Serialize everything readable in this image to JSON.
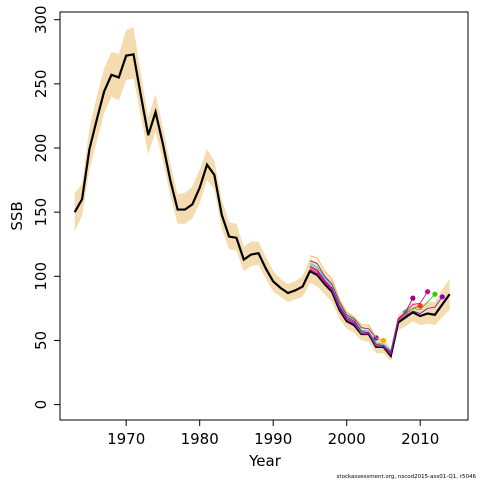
{
  "chart_data": {
    "type": "line",
    "xlabel": "Year",
    "ylabel": "SSB",
    "footnote": "stockassessment.org, nscod2015-ass01-Q1, r5046",
    "xlim": [
      1961,
      2016.5
    ],
    "ylim": [
      -12,
      306
    ],
    "xticks": [
      1970,
      1980,
      1990,
      2000,
      2010
    ],
    "yticks": [
      0,
      50,
      100,
      150,
      200,
      250,
      300
    ],
    "x": [
      1963,
      1964,
      1965,
      1966,
      1967,
      1968,
      1969,
      1970,
      1971,
      1972,
      1973,
      1974,
      1975,
      1976,
      1977,
      1978,
      1979,
      1980,
      1981,
      1982,
      1983,
      1984,
      1985,
      1986,
      1987,
      1988,
      1989,
      1990,
      1991,
      1992,
      1993,
      1994,
      1995,
      1996,
      1997,
      1998,
      1999,
      2000,
      2001,
      2002,
      2003,
      2004,
      2005,
      2006,
      2007,
      2008,
      2009,
      2010,
      2011,
      2012,
      2013,
      2014
    ],
    "values": [
      150,
      160,
      199,
      222,
      244,
      257,
      255,
      272,
      273,
      241,
      210,
      228,
      203,
      175,
      152,
      152,
      156,
      169,
      187,
      179,
      148,
      131,
      130,
      113,
      117,
      118,
      106,
      96,
      91,
      87,
      89,
      92,
      104,
      101,
      94,
      88,
      74,
      65,
      62,
      55,
      55,
      45,
      45,
      38,
      64,
      68,
      72,
      69,
      71,
      70,
      78,
      86
    ],
    "color": "#000000",
    "band_upper": [
      165,
      172,
      215,
      240,
      262,
      275,
      273,
      292,
      294,
      258,
      224,
      242,
      216,
      188,
      164,
      165,
      170,
      183,
      199,
      190,
      160,
      142,
      141,
      123,
      127,
      127,
      115,
      104,
      98,
      94,
      96,
      100,
      114,
      111,
      103,
      97,
      82,
      72,
      69,
      61,
      61,
      51,
      51,
      44,
      70,
      75,
      80,
      78,
      80,
      80,
      90,
      98
    ],
    "band_lower": [
      135,
      147,
      183,
      205,
      227,
      240,
      237,
      253,
      254,
      225,
      195,
      213,
      190,
      163,
      141,
      141,
      145,
      157,
      175,
      168,
      137,
      121,
      120,
      104,
      108,
      109,
      98,
      88,
      84,
      80,
      82,
      84,
      95,
      92,
      86,
      80,
      67,
      59,
      56,
      50,
      49,
      40,
      40,
      34,
      58,
      61,
      65,
      62,
      63,
      62,
      68,
      74
    ],
    "band_color": "#f5dcb0",
    "series": [
      {
        "color": "#6a1b9a",
        "x": [
          1995,
          1996,
          1997,
          1998,
          1999,
          2000,
          2001,
          2002,
          2003,
          2004
        ],
        "values": [
          112,
          110,
          100,
          94,
          80,
          70,
          67,
          60,
          59,
          52
        ]
      },
      {
        "color": "#ffa500",
        "x": [
          1995,
          1996,
          1997,
          1998,
          1999,
          2000,
          2001,
          2002,
          2003,
          2004,
          2005
        ],
        "values": [
          116,
          114,
          104,
          98,
          82,
          72,
          68,
          62,
          62,
          52,
          50
        ]
      },
      {
        "color": "#00bcd4",
        "x": [
          1995,
          1996,
          1997,
          1998,
          1999,
          2000,
          2001,
          2002,
          2003,
          2004,
          2005,
          2006,
          2007,
          2008
        ],
        "values": [
          110,
          107,
          99,
          93,
          78,
          69,
          66,
          58,
          57,
          48,
          47,
          42,
          66,
          72
        ]
      },
      {
        "color": "#a0007a",
        "x": [
          1995,
          1996,
          1997,
          1998,
          1999,
          2000,
          2001,
          2002,
          2003,
          2004,
          2005,
          2006,
          2007,
          2008,
          2009
        ],
        "values": [
          108,
          105,
          97,
          91,
          77,
          68,
          65,
          57,
          56,
          47,
          46,
          41,
          67,
          72,
          83
        ]
      },
      {
        "color": "#ff3030",
        "x": [
          1995,
          1996,
          1997,
          1998,
          1999,
          2000,
          2001,
          2002,
          2003,
          2004,
          2005,
          2006,
          2007,
          2008,
          2009,
          2010
        ],
        "values": [
          106,
          103,
          96,
          90,
          76,
          67,
          64,
          56,
          56,
          46,
          46,
          40,
          66,
          71,
          75,
          77
        ]
      },
      {
        "color": "#e0008c",
        "x": [
          1995,
          1996,
          1997,
          1998,
          1999,
          2000,
          2001,
          2002,
          2003,
          2004,
          2005,
          2006,
          2007,
          2008,
          2009,
          2010,
          2011
        ],
        "values": [
          107,
          104,
          96,
          90,
          76,
          67,
          64,
          56,
          56,
          46,
          46,
          40,
          66,
          72,
          78,
          79,
          88
        ]
      },
      {
        "color": "#33cc00",
        "x": [
          1995,
          1996,
          1997,
          1998,
          1999,
          2000,
          2001,
          2002,
          2003,
          2004,
          2005,
          2006,
          2007,
          2008,
          2009,
          2010,
          2011,
          2012
        ],
        "values": [
          105,
          102,
          95,
          89,
          75,
          66,
          63,
          56,
          55,
          46,
          45,
          39,
          65,
          70,
          75,
          74,
          80,
          86
        ]
      },
      {
        "color": "#8800cc",
        "x": [
          1995,
          1996,
          1997,
          1998,
          1999,
          2000,
          2001,
          2002,
          2003,
          2004,
          2005,
          2006,
          2007,
          2008,
          2009,
          2010,
          2011,
          2012,
          2013
        ],
        "values": [
          105,
          102,
          95,
          89,
          75,
          66,
          63,
          55,
          55,
          45,
          45,
          39,
          65,
          69,
          73,
          71,
          75,
          76,
          84
        ]
      }
    ]
  }
}
